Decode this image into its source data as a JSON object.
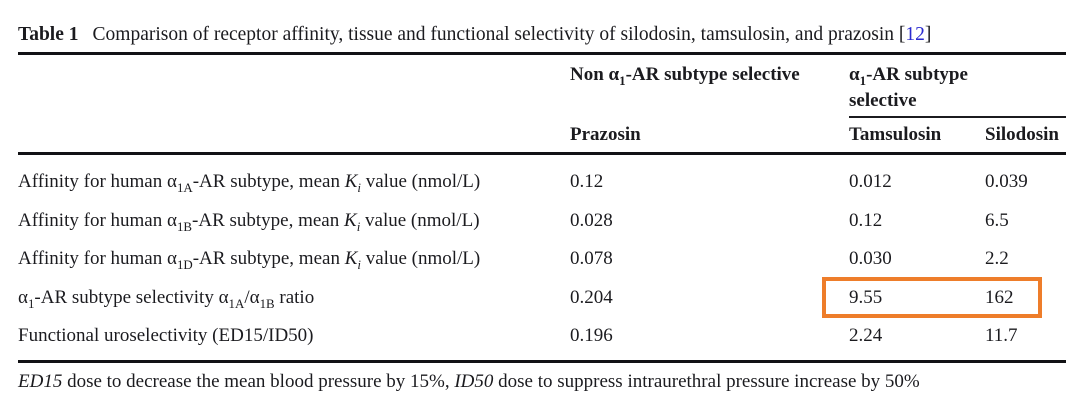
{
  "colors": {
    "text": "#1b1b1f",
    "rule_black": "#121215",
    "citation_blue": "#2a2ad0",
    "highlight_orange": "#ee7d2a"
  },
  "title": {
    "label": "Table 1",
    "text": "Comparison of receptor affinity, tissue and functional selectivity of silodosin, tamsulosin, and prazosin",
    "citation_open": " [",
    "citation_number": "12",
    "citation_close": "]"
  },
  "table": {
    "group_headers": {
      "non_selective": [
        {
          "t": "Non α"
        },
        {
          "t": "1",
          "sub": true
        },
        {
          "t": "-AR subtype selective"
        }
      ],
      "selective": [
        {
          "t": "α"
        },
        {
          "t": "1",
          "sub": true
        },
        {
          "t": "-AR subtype selective"
        }
      ]
    },
    "column_headers": [
      "Prazosin",
      "Tamsulosin",
      "Silodosin"
    ],
    "rows": [
      {
        "label": [
          {
            "t": "Affinity for human α"
          },
          {
            "t": "1A",
            "sub": true
          },
          {
            "t": "-AR subtype, mean "
          },
          {
            "t": "K",
            "i": true
          },
          {
            "t": "i",
            "sub": true,
            "i": true
          },
          {
            "t": " value (nmol/L)"
          }
        ],
        "values": [
          "0.12",
          "0.012",
          "0.039"
        ]
      },
      {
        "label": [
          {
            "t": "Affinity for human α"
          },
          {
            "t": "1B",
            "sub": true
          },
          {
            "t": "-AR subtype, mean "
          },
          {
            "t": "K",
            "i": true
          },
          {
            "t": "i",
            "sub": true,
            "i": true
          },
          {
            "t": " value (nmol/L)"
          }
        ],
        "values": [
          "0.028",
          "0.12",
          "6.5"
        ]
      },
      {
        "label": [
          {
            "t": "Affinity for human α"
          },
          {
            "t": "1D",
            "sub": true
          },
          {
            "t": "-AR subtype, mean "
          },
          {
            "t": "K",
            "i": true
          },
          {
            "t": "i",
            "sub": true,
            "i": true
          },
          {
            "t": " value (nmol/L)"
          }
        ],
        "values": [
          "0.078",
          "0.030",
          "2.2"
        ]
      },
      {
        "label": [
          {
            "t": "α"
          },
          {
            "t": "1",
            "sub": true
          },
          {
            "t": "-AR subtype selectivity α"
          },
          {
            "t": "1A",
            "sub": true
          },
          {
            "t": "/α"
          },
          {
            "t": "1B",
            "sub": true
          },
          {
            "t": " ratio"
          }
        ],
        "values": [
          "0.204",
          "9.55",
          "162"
        ],
        "highlighted_cells": [
          "Tamsulosin",
          "Silodosin"
        ]
      },
      {
        "label": [
          {
            "t": "Functional uroselectivity (ED15/ID50)"
          }
        ],
        "values": [
          "0.196",
          "2.24",
          "11.7"
        ]
      }
    ]
  },
  "footnote": [
    {
      "t": "ED15",
      "i": true
    },
    {
      "t": " dose to decrease the mean blood pressure by 15%, "
    },
    {
      "t": "ID50",
      "i": true
    },
    {
      "t": "  dose to suppress intraurethral pressure increase by 50%"
    }
  ]
}
